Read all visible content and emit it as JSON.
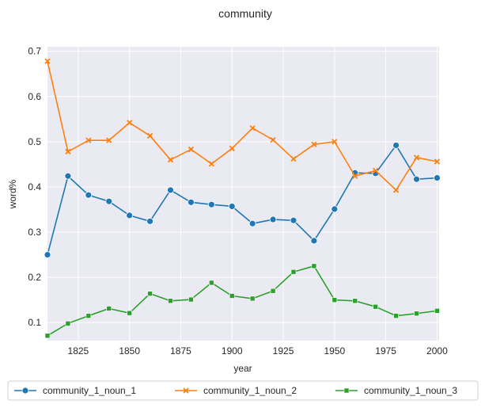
{
  "chart_data": {
    "type": "line",
    "title": "community",
    "xlabel": "year",
    "ylabel": "word%",
    "xlim": [
      1810,
      2001
    ],
    "ylim": [
      0.06,
      0.71
    ],
    "x_ticks": [
      "1825",
      "1850",
      "1875",
      "1900",
      "1925",
      "1950",
      "1975",
      "2000"
    ],
    "y_ticks": [
      "0.1",
      "0.2",
      "0.3",
      "0.4",
      "0.5",
      "0.6",
      "0.7"
    ],
    "grid": true,
    "legend_position": "bottom",
    "x": [
      1810,
      1820,
      1830,
      1840,
      1850,
      1860,
      1870,
      1880,
      1890,
      1900,
      1910,
      1920,
      1930,
      1940,
      1950,
      1960,
      1970,
      1980,
      1990,
      2000
    ],
    "series": [
      {
        "name": "community_1_noun_1",
        "color": "#1f77b4",
        "marker": "circle",
        "values": [
          0.25,
          0.424,
          0.382,
          0.368,
          0.337,
          0.324,
          0.393,
          0.366,
          0.361,
          0.357,
          0.319,
          0.328,
          0.326,
          0.281,
          0.351,
          0.431,
          0.43,
          0.492,
          0.417,
          0.42
        ]
      },
      {
        "name": "community_1_noun_2",
        "color": "#ff7f0e",
        "marker": "x",
        "values": [
          0.678,
          0.478,
          0.503,
          0.503,
          0.542,
          0.513,
          0.46,
          0.483,
          0.451,
          0.485,
          0.53,
          0.504,
          0.462,
          0.494,
          0.5,
          0.424,
          0.436,
          0.393,
          0.465,
          0.456
        ]
      },
      {
        "name": "community_1_noun_3",
        "color": "#2ca02c",
        "marker": "square",
        "values": [
          0.071,
          0.098,
          0.115,
          0.131,
          0.121,
          0.164,
          0.148,
          0.151,
          0.188,
          0.159,
          0.153,
          0.17,
          0.212,
          0.225,
          0.15,
          0.148,
          0.135,
          0.115,
          0.12,
          0.126
        ]
      }
    ]
  }
}
